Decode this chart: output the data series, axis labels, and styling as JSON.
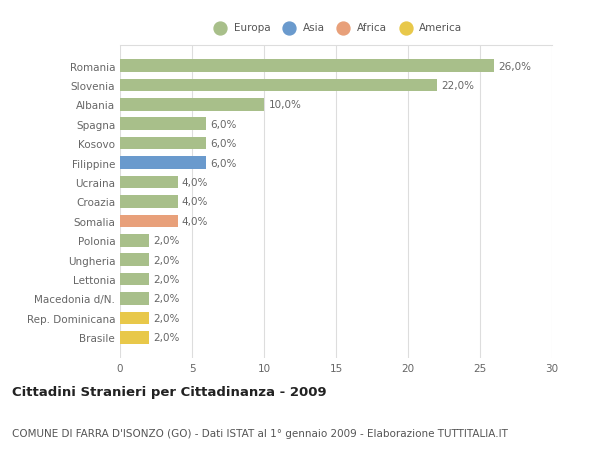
{
  "categories": [
    "Brasile",
    "Rep. Dominicana",
    "Macedonia d/N.",
    "Lettonia",
    "Ungheria",
    "Polonia",
    "Somalia",
    "Croazia",
    "Ucraina",
    "Filippine",
    "Kosovo",
    "Spagna",
    "Albania",
    "Slovenia",
    "Romania"
  ],
  "values": [
    2.0,
    2.0,
    2.0,
    2.0,
    2.0,
    2.0,
    4.0,
    4.0,
    4.0,
    6.0,
    6.0,
    6.0,
    10.0,
    22.0,
    26.0
  ],
  "colors": [
    "#e8c84a",
    "#e8c84a",
    "#a8bf8a",
    "#a8bf8a",
    "#a8bf8a",
    "#a8bf8a",
    "#e8a07a",
    "#a8bf8a",
    "#a8bf8a",
    "#6a9acd",
    "#a8bf8a",
    "#a8bf8a",
    "#a8bf8a",
    "#a8bf8a",
    "#a8bf8a"
  ],
  "bar_labels": [
    "2,0%",
    "2,0%",
    "2,0%",
    "2,0%",
    "2,0%",
    "2,0%",
    "4,0%",
    "4,0%",
    "4,0%",
    "6,0%",
    "6,0%",
    "6,0%",
    "10,0%",
    "22,0%",
    "26,0%"
  ],
  "legend_labels": [
    "Europa",
    "Asia",
    "Africa",
    "America"
  ],
  "legend_colors": [
    "#a8bf8a",
    "#6a9acd",
    "#e8a07a",
    "#e8c84a"
  ],
  "title": "Cittadini Stranieri per Cittadinanza - 2009",
  "subtitle": "COMUNE DI FARRA D'ISONZO (GO) - Dati ISTAT al 1° gennaio 2009 - Elaborazione TUTTITALIA.IT",
  "xlim": [
    0,
    30
  ],
  "xticks": [
    0,
    5,
    10,
    15,
    20,
    25,
    30
  ],
  "background_color": "#ffffff",
  "grid_color": "#dddddd",
  "bar_height": 0.65,
  "label_fontsize": 7.5,
  "title_fontsize": 9.5,
  "subtitle_fontsize": 7.5,
  "tick_fontsize": 7.5
}
